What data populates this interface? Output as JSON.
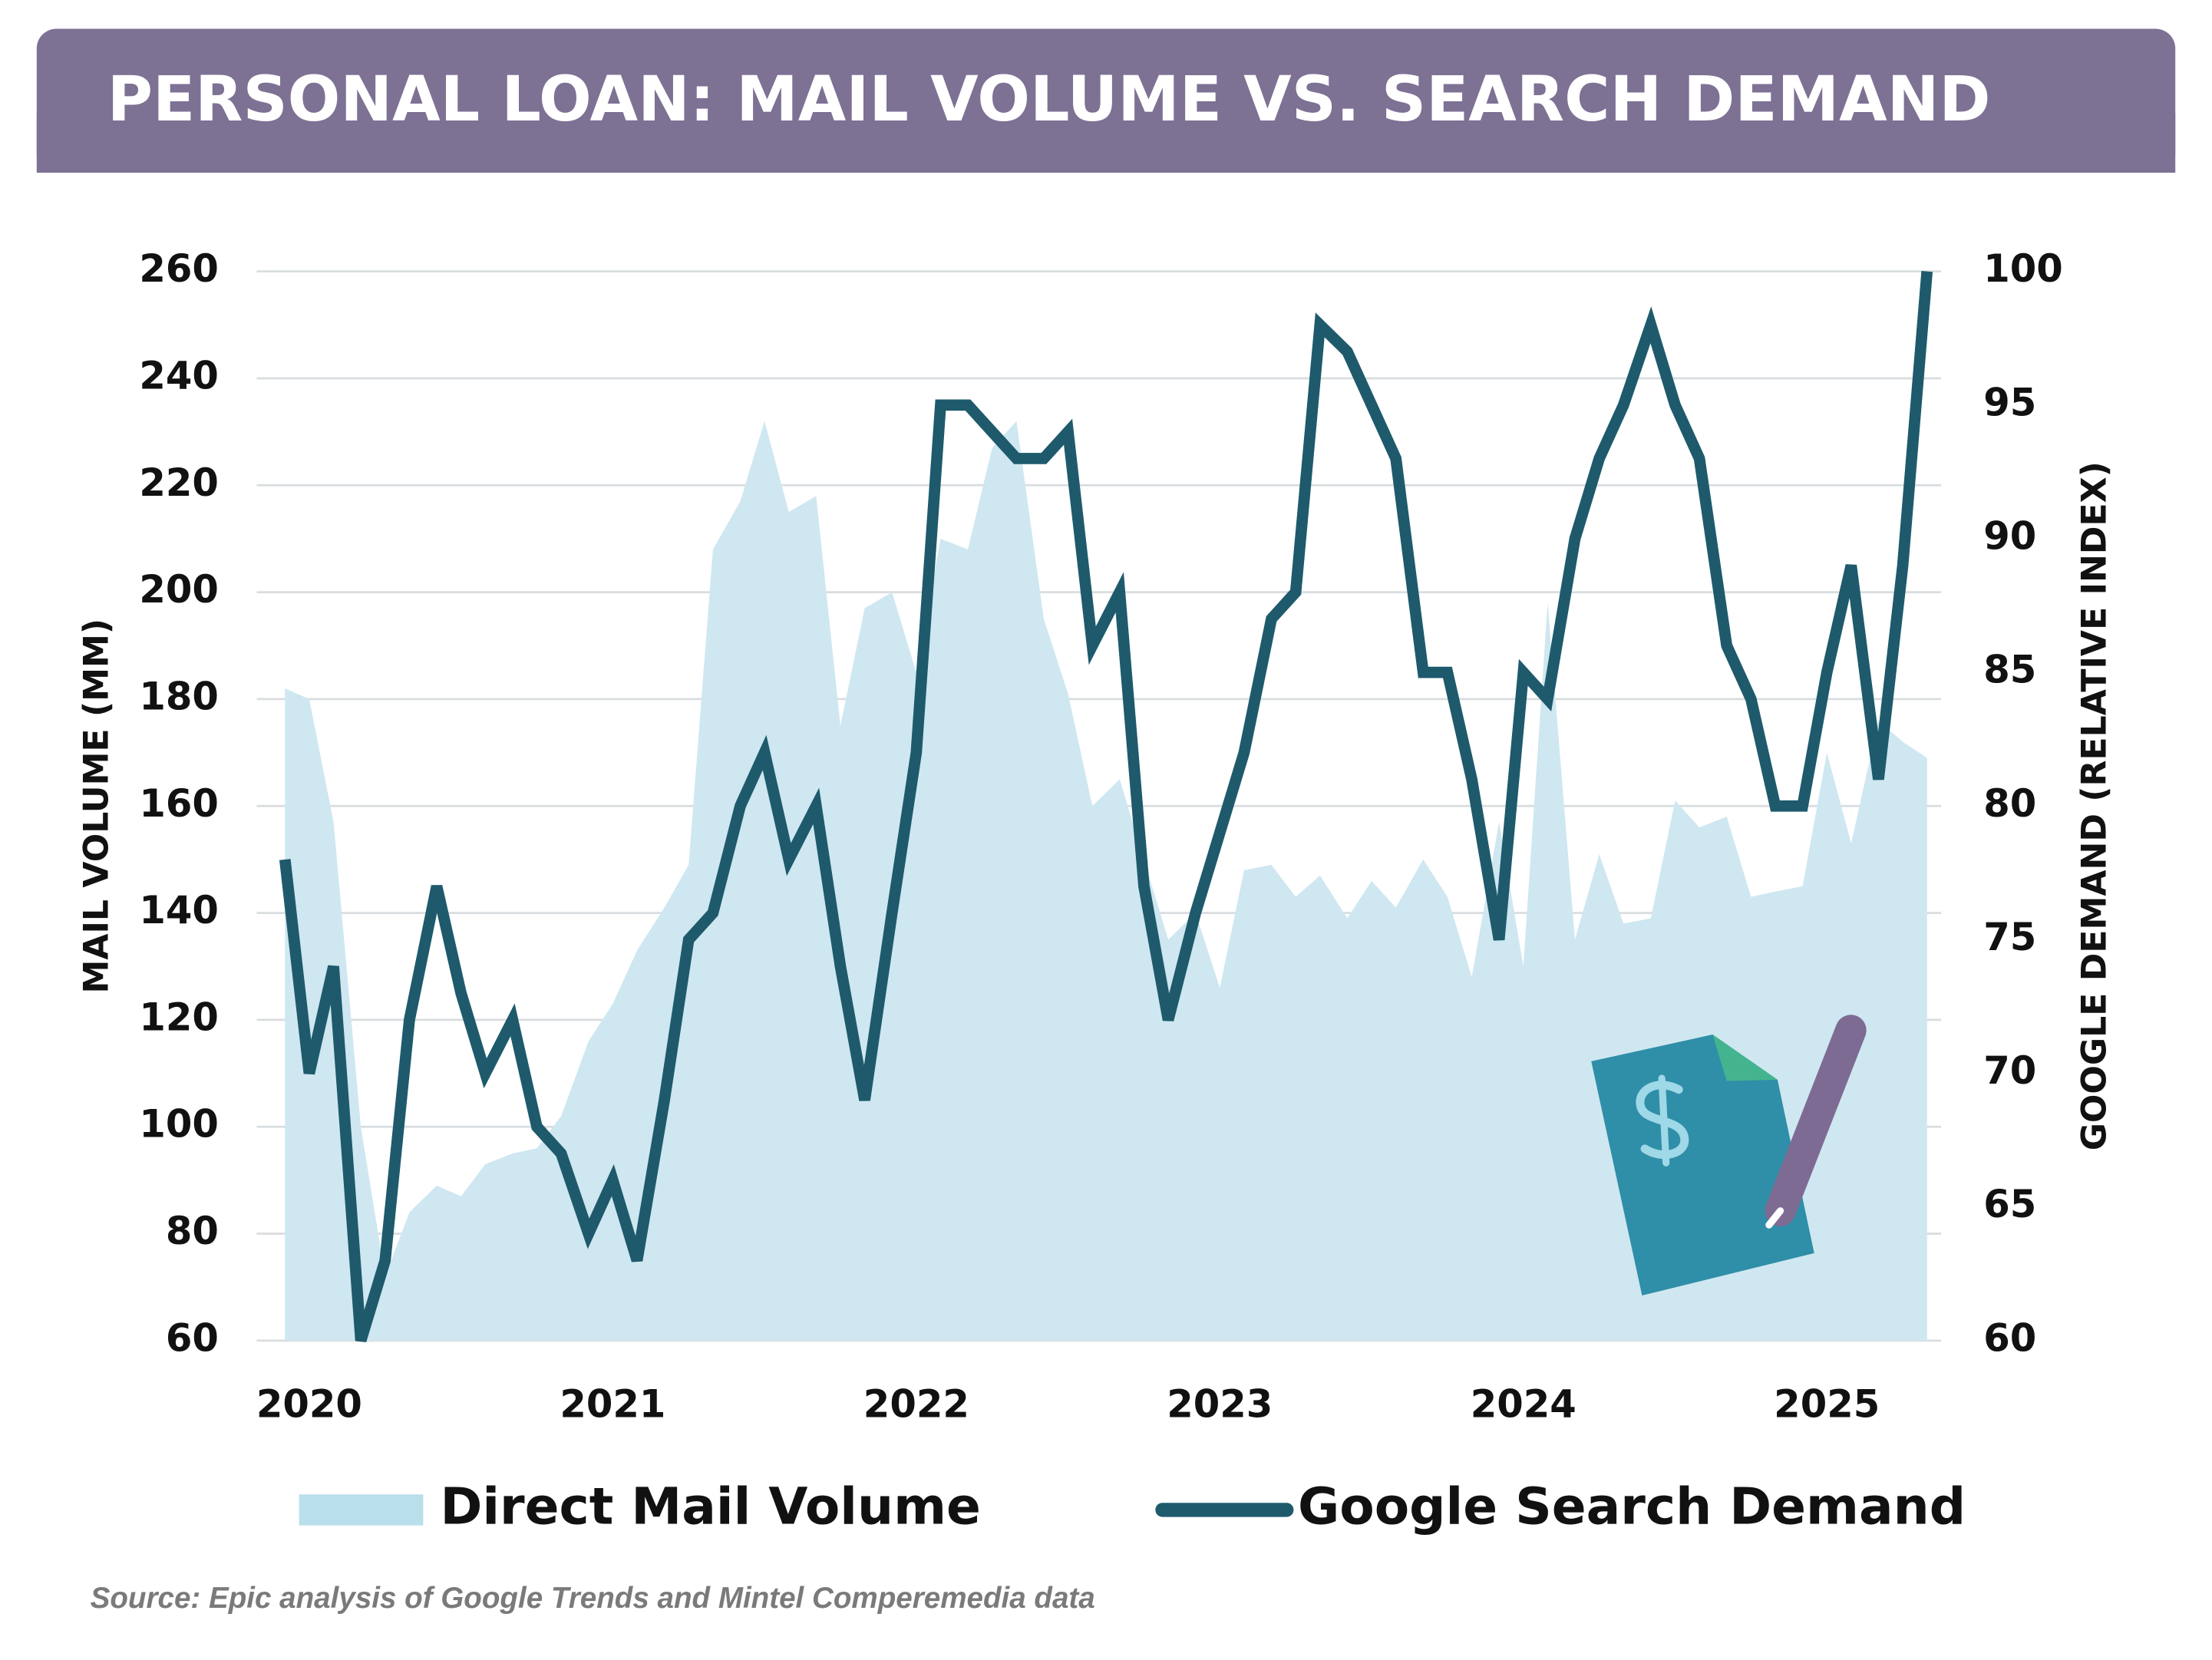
{
  "chart_data": {
    "type": "area-line",
    "title": "PERSONAL LOAN: MAIL VOLUME VS. SEARCH DEMAND",
    "ylabel": "MAIL VOLUME (MM)",
    "y2label": "GOOGLE DEMAND (RELATIVE INDEX)",
    "source": "Source: Epic analysis of Google Trends and Mintel Comperemedia data",
    "x": [
      2019.92,
      2020.0,
      2020.08,
      2020.17,
      2020.25,
      2020.33,
      2020.42,
      2020.5,
      2020.58,
      2020.67,
      2020.75,
      2020.83,
      2020.92,
      2021.0,
      2021.08,
      2021.17,
      2021.25,
      2021.33,
      2021.42,
      2021.5,
      2021.58,
      2021.67,
      2021.75,
      2021.83,
      2021.92,
      2022.0,
      2022.08,
      2022.17,
      2022.25,
      2022.33,
      2022.42,
      2022.5,
      2022.58,
      2022.67,
      2022.75,
      2022.83,
      2022.92,
      2023.0,
      2023.08,
      2023.17,
      2023.25,
      2023.33,
      2023.42,
      2023.5,
      2023.58,
      2023.67,
      2023.75,
      2023.83,
      2023.92,
      2024.0,
      2024.08,
      2024.17,
      2024.25,
      2024.33,
      2024.42,
      2024.5,
      2024.58,
      2024.67,
      2024.75,
      2024.83,
      2024.92,
      2025.0,
      2025.08,
      2025.17,
      2025.25,
      2025.33
    ],
    "xlim": [
      2019.92,
      2025.33
    ],
    "xticks": [
      2020,
      2021,
      2022,
      2023,
      2024,
      2025
    ],
    "ylim": [
      60,
      260
    ],
    "yticks": [
      60,
      80,
      100,
      120,
      140,
      160,
      180,
      200,
      220,
      240,
      260
    ],
    "y2lim": [
      60,
      100
    ],
    "y2ticks": [
      60,
      65,
      70,
      75,
      80,
      85,
      90,
      95,
      100
    ],
    "grid": true,
    "series": [
      {
        "name": "Direct Mail Volume",
        "color": "#cfe7f0",
        "kind": "area",
        "values": [
          182,
          180,
          157,
          100,
          72,
          84,
          89,
          87,
          93,
          95,
          96,
          102,
          116,
          123,
          133,
          141,
          149,
          208,
          217,
          232,
          215,
          218,
          175,
          197,
          200,
          185,
          210,
          208,
          227,
          232,
          195,
          181,
          160,
          165,
          150,
          135,
          140,
          126,
          148,
          149,
          143,
          147,
          139,
          146,
          141,
          150,
          143,
          128,
          157,
          130,
          198,
          135,
          151,
          138,
          139,
          161,
          156,
          158,
          143,
          144,
          145,
          170,
          153,
          176,
          172,
          169
        ]
      },
      {
        "name": "Google Search Demand",
        "color": "#1e5a6c",
        "kind": "line",
        "axis": "y2",
        "values": [
          78,
          70,
          74,
          60,
          63,
          72,
          77,
          73,
          70,
          72,
          68,
          67,
          64,
          66,
          63,
          69,
          75,
          76,
          80,
          82,
          78,
          80,
          74,
          69,
          76,
          82,
          95,
          95,
          94,
          93,
          93,
          94,
          86,
          88,
          77,
          72,
          76,
          79,
          82,
          87,
          88,
          98,
          97,
          95,
          93,
          85,
          85,
          81,
          75,
          85,
          84,
          90,
          93,
          95,
          98,
          95,
          93,
          86,
          84,
          80,
          80,
          85,
          89,
          81,
          89,
          100
        ]
      }
    ]
  }
}
